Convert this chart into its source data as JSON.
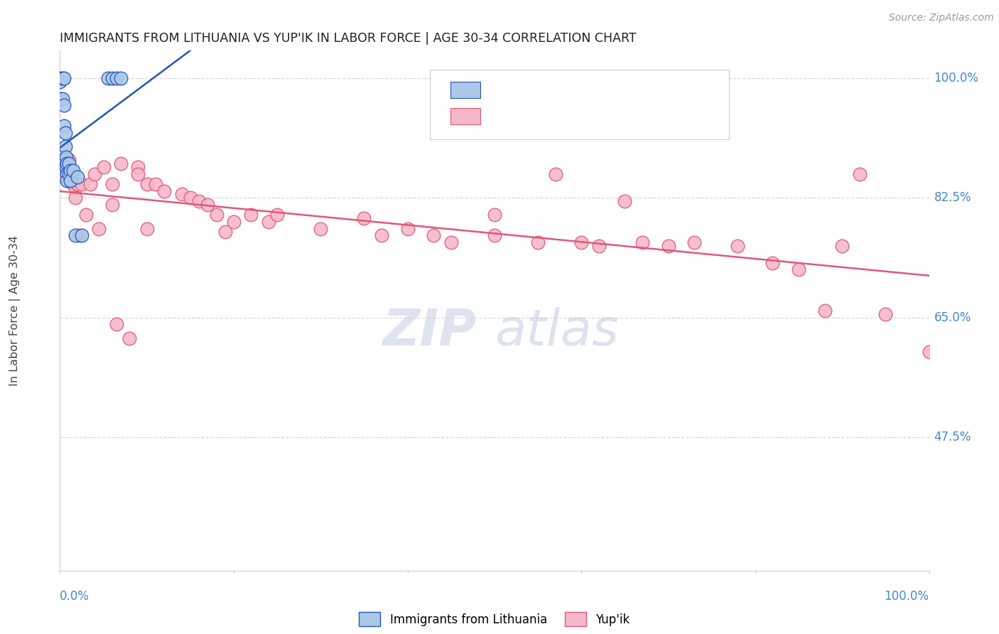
{
  "title": "IMMIGRANTS FROM LITHUANIA VS YUP'IK IN LABOR FORCE | AGE 30-34 CORRELATION CHART",
  "source": "Source: ZipAtlas.com",
  "ylabel": "In Labor Force | Age 30-34",
  "xlim": [
    0.0,
    1.0
  ],
  "ylim": [
    0.28,
    1.04
  ],
  "yticks": [
    0.475,
    0.65,
    0.825,
    1.0
  ],
  "ytick_labels": [
    "47.5%",
    "65.0%",
    "82.5%",
    "100.0%"
  ],
  "color_lithuania": "#adc8e8",
  "color_yupik": "#f5b8c8",
  "color_line_lithuania": "#2255bb",
  "color_line_yupik": "#e05878",
  "watermark_zip": "ZIP",
  "watermark_atlas": "atlas",
  "background_color": "#ffffff",
  "grid_color": "#d8d8d8",
  "title_color": "#222222",
  "axis_label_color": "#444444",
  "tick_label_color": "#4488cc",
  "source_color": "#999999",
  "lithuania_x": [
    0.0,
    0.0,
    0.0,
    0.003,
    0.003,
    0.005,
    0.005,
    0.005,
    0.006,
    0.006,
    0.006,
    0.007,
    0.007,
    0.008,
    0.008,
    0.008,
    0.01,
    0.01,
    0.012,
    0.012,
    0.015,
    0.018,
    0.02,
    0.025,
    0.055,
    0.06,
    0.065,
    0.07
  ],
  "lithuania_y": [
    1.0,
    0.995,
    0.97,
    1.0,
    0.97,
    1.0,
    0.96,
    0.93,
    0.92,
    0.9,
    0.88,
    0.885,
    0.87,
    0.875,
    0.86,
    0.85,
    0.875,
    0.86,
    0.865,
    0.85,
    0.865,
    0.77,
    0.855,
    0.77,
    1.0,
    1.0,
    1.0,
    1.0
  ],
  "yupik_x": [
    0.0,
    0.0,
    0.005,
    0.005,
    0.008,
    0.01,
    0.012,
    0.015,
    0.018,
    0.018,
    0.02,
    0.022,
    0.025,
    0.03,
    0.035,
    0.04,
    0.045,
    0.05,
    0.06,
    0.06,
    0.065,
    0.07,
    0.08,
    0.09,
    0.09,
    0.1,
    0.1,
    0.11,
    0.12,
    0.14,
    0.15,
    0.16,
    0.17,
    0.18,
    0.19,
    0.2,
    0.22,
    0.24,
    0.25,
    0.3,
    0.35,
    0.37,
    0.4,
    0.43,
    0.45,
    0.5,
    0.5,
    0.55,
    0.57,
    0.6,
    0.62,
    0.65,
    0.67,
    0.7,
    0.73,
    0.78,
    0.82,
    0.85,
    0.88,
    0.9,
    0.92,
    0.95,
    1.0
  ],
  "yupik_y": [
    0.88,
    0.86,
    0.875,
    0.855,
    0.875,
    0.88,
    0.855,
    0.845,
    0.84,
    0.825,
    0.845,
    0.77,
    0.845,
    0.8,
    0.845,
    0.86,
    0.78,
    0.87,
    0.845,
    0.815,
    0.64,
    0.875,
    0.62,
    0.87,
    0.86,
    0.845,
    0.78,
    0.845,
    0.835,
    0.83,
    0.825,
    0.82,
    0.815,
    0.8,
    0.775,
    0.79,
    0.8,
    0.79,
    0.8,
    0.78,
    0.795,
    0.77,
    0.78,
    0.77,
    0.76,
    0.77,
    0.8,
    0.76,
    0.86,
    0.76,
    0.755,
    0.82,
    0.76,
    0.755,
    0.76,
    0.755,
    0.73,
    0.72,
    0.66,
    0.755,
    0.86,
    0.655,
    0.6
  ]
}
